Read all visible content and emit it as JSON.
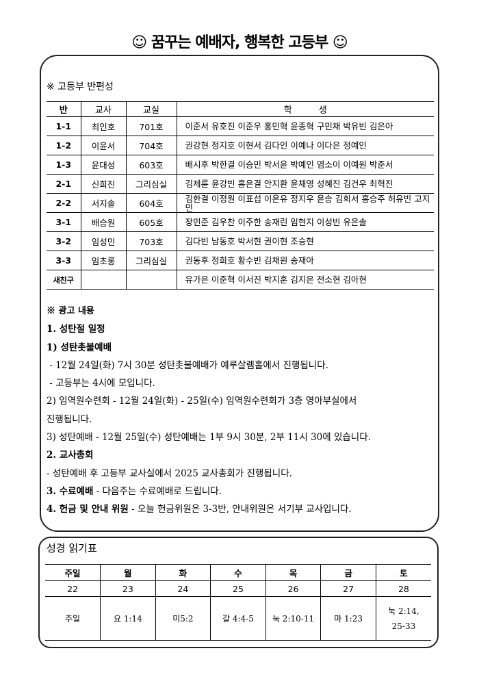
{
  "title": "☺ 꿈꾸는 예배자, 행복한 고등부 ☺",
  "roster": {
    "heading": "※ 고등부 반편성",
    "headers": [
      "반",
      "교사",
      "교실",
      "학　　　생"
    ],
    "rows": [
      {
        "class": "1-1",
        "teacher": "최인호",
        "room": "701호",
        "students": "이준서 유호진 이준우 홍민혁 윤종혁 구민채 박유빈 김은아"
      },
      {
        "class": "1-2",
        "teacher": "이윤서",
        "room": "704호",
        "students": "권강현 정지호 이현서 김다인 이예나 이다은 정예인"
      },
      {
        "class": "1-3",
        "teacher": "윤대성",
        "room": "603호",
        "students": "배시후 박한결 이승민 박서윤 박예인 염소이 이예원 박준서"
      },
      {
        "class": "2-1",
        "teacher": "신희진",
        "room": "그리심실",
        "students": "김제륜 윤강빈 홍은결 안지환 윤채영 성혜진 김건우 최혁진"
      },
      {
        "class": "2-2",
        "teacher": "서지솔",
        "room": "604호",
        "students": "김한결 이정원 이표섭 이온유 정지우 윤송 김희서 홍승주 허유빈 고지민"
      },
      {
        "class": "3-1",
        "teacher": "배승원",
        "room": "605호",
        "students": "장민준 김우찬 이주한 송재린 임현지 이성빈 유은솔"
      },
      {
        "class": "3-2",
        "teacher": "임성민",
        "room": "703호",
        "students": "김다빈 남동호 박서현 권이현 조승현"
      },
      {
        "class": "3-3",
        "teacher": "임초롱",
        "room": "그리심실",
        "students": "권동후 정희호 황수빈 김채원 송재아"
      },
      {
        "class": "새친구",
        "teacher": "",
        "room": "",
        "students": "유가은 이준혁 이서진 박지훈 김지은 전소현 김아현"
      }
    ]
  },
  "announcements": {
    "heading": "※ 광고 내용",
    "lines": [
      {
        "text": "1. 성탄절 일정",
        "bold": true
      },
      {
        "text": "1) 성탄촛불예배",
        "bold": true
      },
      {
        "text": " - 12월 24일(화) 7시 30분 성탄촛불예배가 예루살렘홀에서 진행됩니다."
      },
      {
        "text": " - 고등부는 4시에 모입니다."
      },
      {
        "text": "2) 임역원수련회 - 12월 24일(화) - 25일(수) 임역원수련회가 3층 영아부실에서"
      },
      {
        "text": "진행됩니다."
      },
      {
        "text": "3) 성탄예배 - 12월 25일(수) 성탄예배는 1부 9시 30분, 2부 11시 30에 있습니다."
      },
      {
        "text": "2. 교사총회",
        "bold": true
      },
      {
        "text": "- 성탄예배 후 고등부 교사실에서 2025 교사총회가 진행됩니다."
      },
      {
        "bold_part": "3. 수료예배",
        "text": " - 다음주는 수료예배로 드립니다."
      },
      {
        "bold_part": "4. 헌금 및 안내 위원",
        "text": " - 오늘 헌금위원은 3-3반, 안내위원은 서기부 교사입니다."
      }
    ]
  },
  "bible": {
    "heading": "성경 읽기표",
    "days": [
      "주일",
      "월",
      "화",
      "수",
      "목",
      "금",
      "토"
    ],
    "dates": [
      "22",
      "23",
      "24",
      "25",
      "26",
      "27",
      "28"
    ],
    "readings": [
      "주일",
      "요 1:14",
      "미5:2",
      "갈 4:4-5",
      "눅 2:10-11",
      "마 1:23",
      "눅 2:14, 25-33"
    ]
  }
}
